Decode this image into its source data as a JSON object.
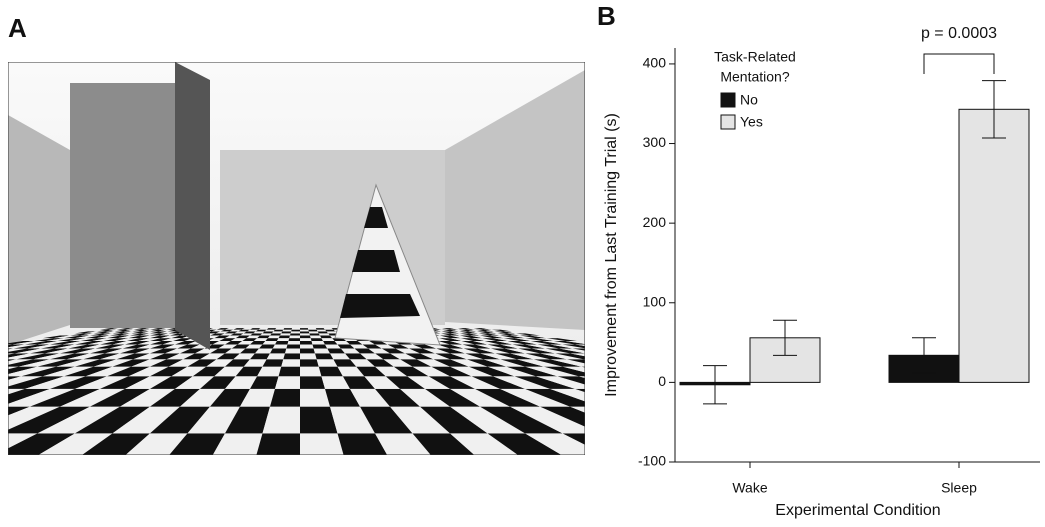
{
  "panel_labels": [
    "A",
    "B"
  ],
  "chart_data": {
    "type": "bar",
    "y_label": "Improvement from Last Training Trial (s)",
    "x_label": "Experimental Condition",
    "categories": [
      "Wake",
      "Sleep"
    ],
    "legend_title": [
      "Task-Related",
      "Mentation?"
    ],
    "series": [
      {
        "name": "No",
        "color": "#111111",
        "values": [
          -3,
          34
        ],
        "errors": [
          24,
          22
        ]
      },
      {
        "name": "Yes",
        "color": "#e4e4e4",
        "values": [
          56,
          343
        ],
        "errors": [
          22,
          36
        ]
      }
    ],
    "annotation": "p = 0.0003",
    "ylim": [
      -100,
      420
    ],
    "yticks": [
      -100,
      0,
      100,
      200,
      300,
      400
    ],
    "grid": false
  }
}
